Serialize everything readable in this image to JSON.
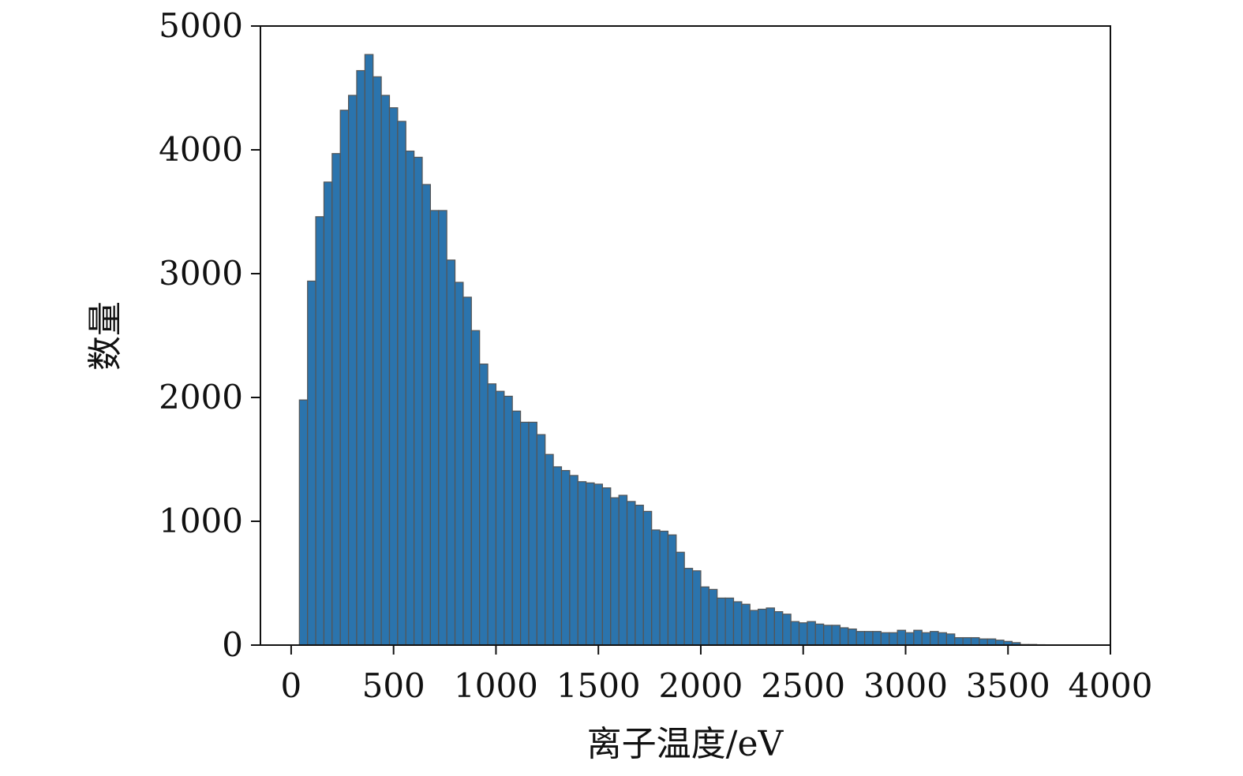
{
  "chart_data": {
    "type": "bar",
    "subtype": "histogram",
    "title": "",
    "xlabel": "离子温度/eV",
    "ylabel": "数量",
    "xlim": [
      -150,
      4000
    ],
    "ylim": [
      0,
      5000
    ],
    "xticks": [
      0,
      500,
      1000,
      1500,
      2000,
      2500,
      3000,
      3500,
      4000
    ],
    "yticks": [
      0,
      1000,
      2000,
      3000,
      4000,
      5000
    ],
    "grid": false,
    "legend": "none",
    "bar_color": "#2b74ad",
    "bin_width": 40,
    "bin_start": 40,
    "values": [
      1980,
      2940,
      3460,
      3740,
      3970,
      4320,
      4440,
      4640,
      4770,
      4590,
      4440,
      4340,
      4230,
      3990,
      3940,
      3720,
      3510,
      3510,
      3110,
      2930,
      2810,
      2540,
      2270,
      2110,
      2050,
      2010,
      1890,
      1800,
      1800,
      1700,
      1540,
      1440,
      1410,
      1370,
      1320,
      1310,
      1300,
      1270,
      1190,
      1210,
      1160,
      1130,
      1080,
      930,
      920,
      890,
      750,
      620,
      600,
      470,
      450,
      380,
      380,
      350,
      330,
      280,
      290,
      300,
      270,
      250,
      190,
      180,
      190,
      170,
      160,
      160,
      140,
      130,
      110,
      110,
      110,
      100,
      100,
      120,
      100,
      120,
      100,
      110,
      100,
      90,
      60,
      60,
      60,
      50,
      50,
      40,
      30,
      20,
      5,
      5,
      3,
      2,
      1,
      0,
      0,
      0,
      0,
      0,
      0
    ]
  }
}
